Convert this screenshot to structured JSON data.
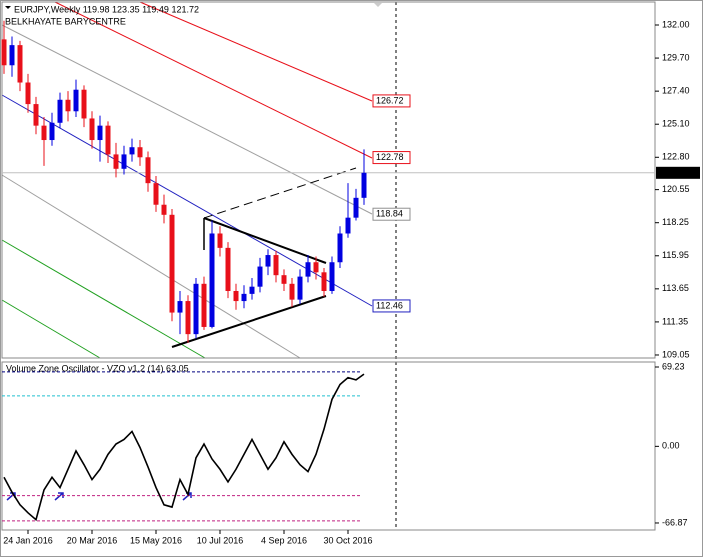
{
  "chart_data": [
    {
      "type": "candlestick",
      "title": "EURJPY,Weekly  119.98 123.35 119.49 121.72",
      "subtitle": "BELKHAYATE BARYCENTRE",
      "open": [
        131.0,
        129.2,
        130.6,
        128.0,
        126.5,
        125.0,
        124.0,
        125.2,
        126.8,
        126.0,
        127.5,
        125.5,
        124.0,
        125.0,
        123.0,
        122.0,
        123.0,
        123.5,
        122.8,
        121.0,
        119.5,
        118.8,
        112.0,
        112.8,
        110.5,
        114.0,
        111.0,
        117.5,
        116.5,
        113.5,
        112.8,
        113.3,
        113.8,
        115.2,
        116.0,
        114.6,
        114.0,
        112.9,
        114.5,
        115.5,
        114.8,
        113.5,
        115.5,
        117.5,
        118.6,
        119.98
      ],
      "high": [
        132.3,
        131.2,
        130.9,
        128.6,
        127.0,
        125.6,
        125.9,
        127.3,
        127.4,
        128.2,
        127.8,
        126.0,
        125.7,
        125.3,
        123.8,
        123.6,
        124.1,
        124.0,
        123.2,
        121.5,
        120.2,
        119.2,
        113.5,
        113.2,
        114.4,
        114.5,
        118.4,
        118.0,
        116.9,
        114.0,
        113.9,
        114.4,
        115.8,
        116.4,
        116.3,
        115.0,
        114.4,
        115.0,
        116.0,
        115.9,
        115.1,
        115.9,
        118.0,
        121.0,
        120.6,
        123.35
      ],
      "low": [
        128.6,
        128.4,
        127.4,
        125.9,
        124.4,
        122.2,
        123.6,
        124.8,
        125.3,
        125.6,
        124.9,
        123.4,
        122.5,
        122.4,
        121.4,
        121.6,
        122.5,
        122.2,
        120.4,
        119.0,
        118.2,
        111.4,
        110.5,
        109.9,
        110.2,
        110.8,
        110.9,
        115.9,
        113.0,
        112.2,
        112.3,
        112.9,
        113.4,
        114.6,
        114.1,
        113.5,
        112.4,
        112.6,
        114.1,
        114.3,
        113.1,
        113.3,
        115.1,
        117.2,
        118.4,
        119.49
      ],
      "close": [
        129.2,
        130.6,
        128.0,
        126.5,
        125.0,
        124.0,
        125.2,
        126.8,
        126.0,
        127.5,
        125.5,
        124.0,
        125.0,
        123.0,
        122.0,
        123.0,
        123.5,
        122.8,
        121.0,
        119.5,
        118.8,
        112.0,
        112.8,
        110.5,
        114.0,
        111.0,
        117.5,
        116.5,
        113.5,
        112.8,
        113.3,
        113.8,
        115.2,
        116.0,
        114.6,
        114.0,
        112.9,
        114.5,
        115.5,
        114.8,
        113.5,
        115.5,
        117.5,
        118.6,
        119.98,
        121.72
      ],
      "up_color": "#0000e0",
      "down_color": "#e8101a",
      "ylim": [
        108.84,
        133.6
      ],
      "yticks": [
        {
          "value": 132.0,
          "label": "132.00"
        },
        {
          "value": 129.7,
          "label": "129.70"
        },
        {
          "value": 127.4,
          "label": "127.40"
        },
        {
          "value": 125.1,
          "label": "125.10"
        },
        {
          "value": 122.8,
          "label": "122.80"
        },
        {
          "value": 120.55,
          "label": "120.55"
        },
        {
          "value": 118.25,
          "label": "118.25"
        },
        {
          "value": 115.95,
          "label": "115.95"
        },
        {
          "value": 113.65,
          "label": "113.65"
        },
        {
          "value": 111.35,
          "label": "111.35"
        },
        {
          "value": 109.05,
          "label": "109.05"
        }
      ],
      "price_labels": [
        {
          "value": 126.72,
          "label": "126.72",
          "color": "#e8101a"
        },
        {
          "value": 122.78,
          "label": "122.78",
          "color": "#e8101a"
        },
        {
          "value": 118.84,
          "label": "118.84",
          "color": "#909090"
        },
        {
          "value": 112.46,
          "label": "112.46",
          "color": "#2020c0"
        }
      ],
      "last_price": {
        "value": 121.72,
        "label": "121.72"
      }
    },
    {
      "type": "line",
      "title": "Volume Zone Oscillator - VZO v1.2 (14) 63.05",
      "categories": [
        null,
        null,
        null,
        "24 Jan 2016",
        null,
        null,
        null,
        null,
        null,
        null,
        null,
        "20 Mar 2016",
        null,
        null,
        null,
        null,
        null,
        null,
        null,
        "15 May 2016",
        null,
        null,
        null,
        null,
        null,
        null,
        null,
        "10 Jul 2016",
        null,
        null,
        null,
        null,
        null,
        null,
        null,
        "4 Sep 2016",
        null,
        null,
        null,
        null,
        null,
        null,
        null,
        "30 Oct 2016",
        null,
        null
      ],
      "series": [
        {
          "name": "VZO",
          "color": "#000000",
          "values": [
            -27,
            -40,
            -51,
            -58,
            -64,
            -38,
            -27,
            -36,
            -20,
            -4,
            -16,
            -29,
            -20,
            -7,
            2,
            6,
            13,
            -1,
            -18,
            -36,
            -51,
            -53,
            -29,
            -42,
            -10,
            2,
            -11,
            -20,
            -31,
            -20,
            -7,
            6,
            -7,
            -20,
            -10,
            4,
            -7,
            -16,
            -22,
            -7,
            15,
            41,
            54,
            60,
            58,
            63.05
          ]
        }
      ],
      "levels": [
        {
          "value": 65,
          "color": "#000080"
        },
        {
          "value": 44,
          "color": "#20c0d0"
        },
        {
          "value": -43,
          "color": "#c02080"
        },
        {
          "value": -65,
          "color": "#c02080"
        }
      ],
      "ylim": [
        -73.0,
        73.6
      ],
      "yticks": [
        {
          "value": 69.23,
          "label": "69.23"
        },
        {
          "value": 0,
          "label": "0.00"
        },
        {
          "value": -66.87,
          "label": "-66.87"
        }
      ]
    }
  ]
}
